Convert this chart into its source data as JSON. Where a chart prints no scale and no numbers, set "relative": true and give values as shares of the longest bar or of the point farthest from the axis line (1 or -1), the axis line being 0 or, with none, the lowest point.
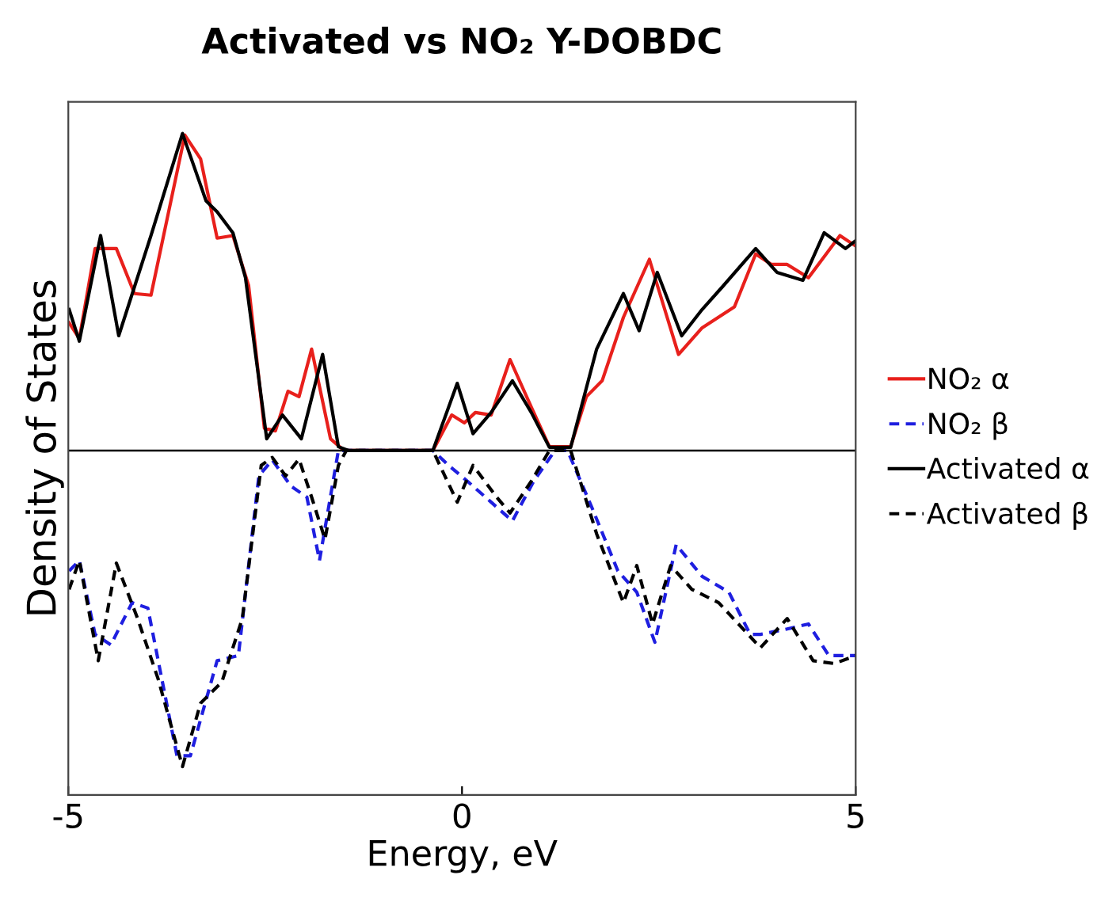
{
  "chart_data": {
    "type": "line",
    "title": "Activated vs NO₂ Y-DOBDC",
    "xlabel": "Energy, eV",
    "ylabel": "Density of States",
    "relative": true,
    "xlim": [
      -5,
      5
    ],
    "xticks": [
      -5,
      0,
      5
    ],
    "legend": "right",
    "grid": false,
    "series": [
      {
        "name": "NO₂ α",
        "color": "#e8201c",
        "line_style": "solid",
        "x": [
          -4.99,
          -4.86,
          -4.66,
          -4.39,
          -4.16,
          -3.95,
          -3.52,
          -3.32,
          -3.11,
          -2.91,
          -2.71,
          -2.51,
          -2.37,
          -2.21,
          -2.07,
          -1.91,
          -1.67,
          -1.5,
          -0.37,
          -0.13,
          0.03,
          0.17,
          0.37,
          0.61,
          0.88,
          1.11,
          1.38,
          1.58,
          1.78,
          2.05,
          2.38,
          2.75,
          3.05,
          3.46,
          3.73,
          3.93,
          4.13,
          4.4,
          4.8,
          5.0
        ],
        "values": [
          0.403,
          0.353,
          0.637,
          0.637,
          0.495,
          0.49,
          0.995,
          0.92,
          0.67,
          0.678,
          0.52,
          0.07,
          0.062,
          0.187,
          0.17,
          0.32,
          0.037,
          0,
          0,
          0.112,
          0.087,
          0.12,
          0.112,
          0.287,
          0.137,
          0.012,
          0.012,
          0.17,
          0.22,
          0.42,
          0.603,
          0.303,
          0.387,
          0.453,
          0.62,
          0.587,
          0.587,
          0.545,
          0.678,
          0.645
        ]
      },
      {
        "name": "NO₂ β",
        "color": "#1f1fe0",
        "line_style": "dashed",
        "x": [
          -4.99,
          -4.86,
          -4.66,
          -4.46,
          -4.19,
          -3.99,
          -3.62,
          -3.45,
          -3.11,
          -2.84,
          -2.58,
          -2.41,
          -2.17,
          -1.97,
          -1.81,
          -1.57,
          -1.44,
          -0.37,
          -0.17,
          0.07,
          0.37,
          0.64,
          0.91,
          1.18,
          1.34,
          1.65,
          1.98,
          2.22,
          2.45,
          2.72,
          3.05,
          3.39,
          3.66,
          3.79,
          4.13,
          4.4,
          4.66,
          5.0
        ],
        "values": [
          -0.38,
          -0.347,
          -0.58,
          -0.613,
          -0.48,
          -0.497,
          -0.963,
          -0.963,
          -0.663,
          -0.647,
          -0.08,
          -0.03,
          -0.113,
          -0.147,
          -0.347,
          0,
          0,
          0,
          -0.047,
          -0.097,
          -0.163,
          -0.222,
          -0.097,
          0,
          0,
          -0.18,
          -0.38,
          -0.447,
          -0.605,
          -0.297,
          -0.397,
          -0.447,
          -0.58,
          -0.58,
          -0.563,
          -0.547,
          -0.647,
          -0.647
        ]
      },
      {
        "name": "Activated α",
        "color": "#000000",
        "line_style": "solid",
        "x": [
          -4.99,
          -4.86,
          -4.59,
          -4.36,
          -3.95,
          -3.55,
          -3.25,
          -3.11,
          -2.91,
          -2.75,
          -2.48,
          -2.28,
          -2.04,
          -1.77,
          -1.57,
          -1.44,
          -0.37,
          -0.06,
          0.14,
          0.37,
          0.64,
          0.88,
          1.11,
          1.38,
          1.71,
          2.05,
          2.25,
          2.48,
          2.79,
          3.05,
          3.32,
          3.73,
          4.0,
          4.33,
          4.6,
          4.87,
          5.0
        ],
        "values": [
          0.445,
          0.345,
          0.678,
          0.362,
          0.678,
          1.0,
          0.787,
          0.753,
          0.687,
          0.545,
          0.037,
          0.112,
          0.037,
          0.303,
          0.012,
          0,
          0,
          0.212,
          0.053,
          0.12,
          0.22,
          0.12,
          0.01,
          0.01,
          0.32,
          0.495,
          0.378,
          0.562,
          0.362,
          0.445,
          0.52,
          0.637,
          0.562,
          0.537,
          0.687,
          0.637,
          0.662
        ]
      },
      {
        "name": "Activated β",
        "color": "#000000",
        "line_style": "dashed",
        "x": [
          -4.99,
          -4.86,
          -4.62,
          -4.39,
          -4.12,
          -3.86,
          -3.55,
          -3.32,
          -3.05,
          -2.79,
          -2.55,
          -2.41,
          -2.24,
          -2.07,
          -1.91,
          -1.74,
          -1.57,
          -1.47,
          -0.37,
          -0.06,
          0.14,
          0.44,
          0.61,
          0.88,
          1.11,
          1.38,
          1.71,
          2.05,
          2.22,
          2.42,
          2.65,
          2.92,
          3.26,
          3.79,
          4.13,
          4.46,
          4.73,
          5.0
        ],
        "values": [
          -0.438,
          -0.347,
          -0.663,
          -0.355,
          -0.53,
          -0.72,
          -0.997,
          -0.797,
          -0.73,
          -0.53,
          -0.047,
          -0.022,
          -0.08,
          -0.027,
          -0.147,
          -0.28,
          -0.047,
          0,
          0,
          -0.163,
          -0.047,
          -0.147,
          -0.197,
          -0.097,
          0,
          0,
          -0.263,
          -0.48,
          -0.363,
          -0.547,
          -0.363,
          -0.438,
          -0.48,
          -0.622,
          -0.53,
          -0.663,
          -0.672,
          -0.647
        ]
      }
    ]
  }
}
